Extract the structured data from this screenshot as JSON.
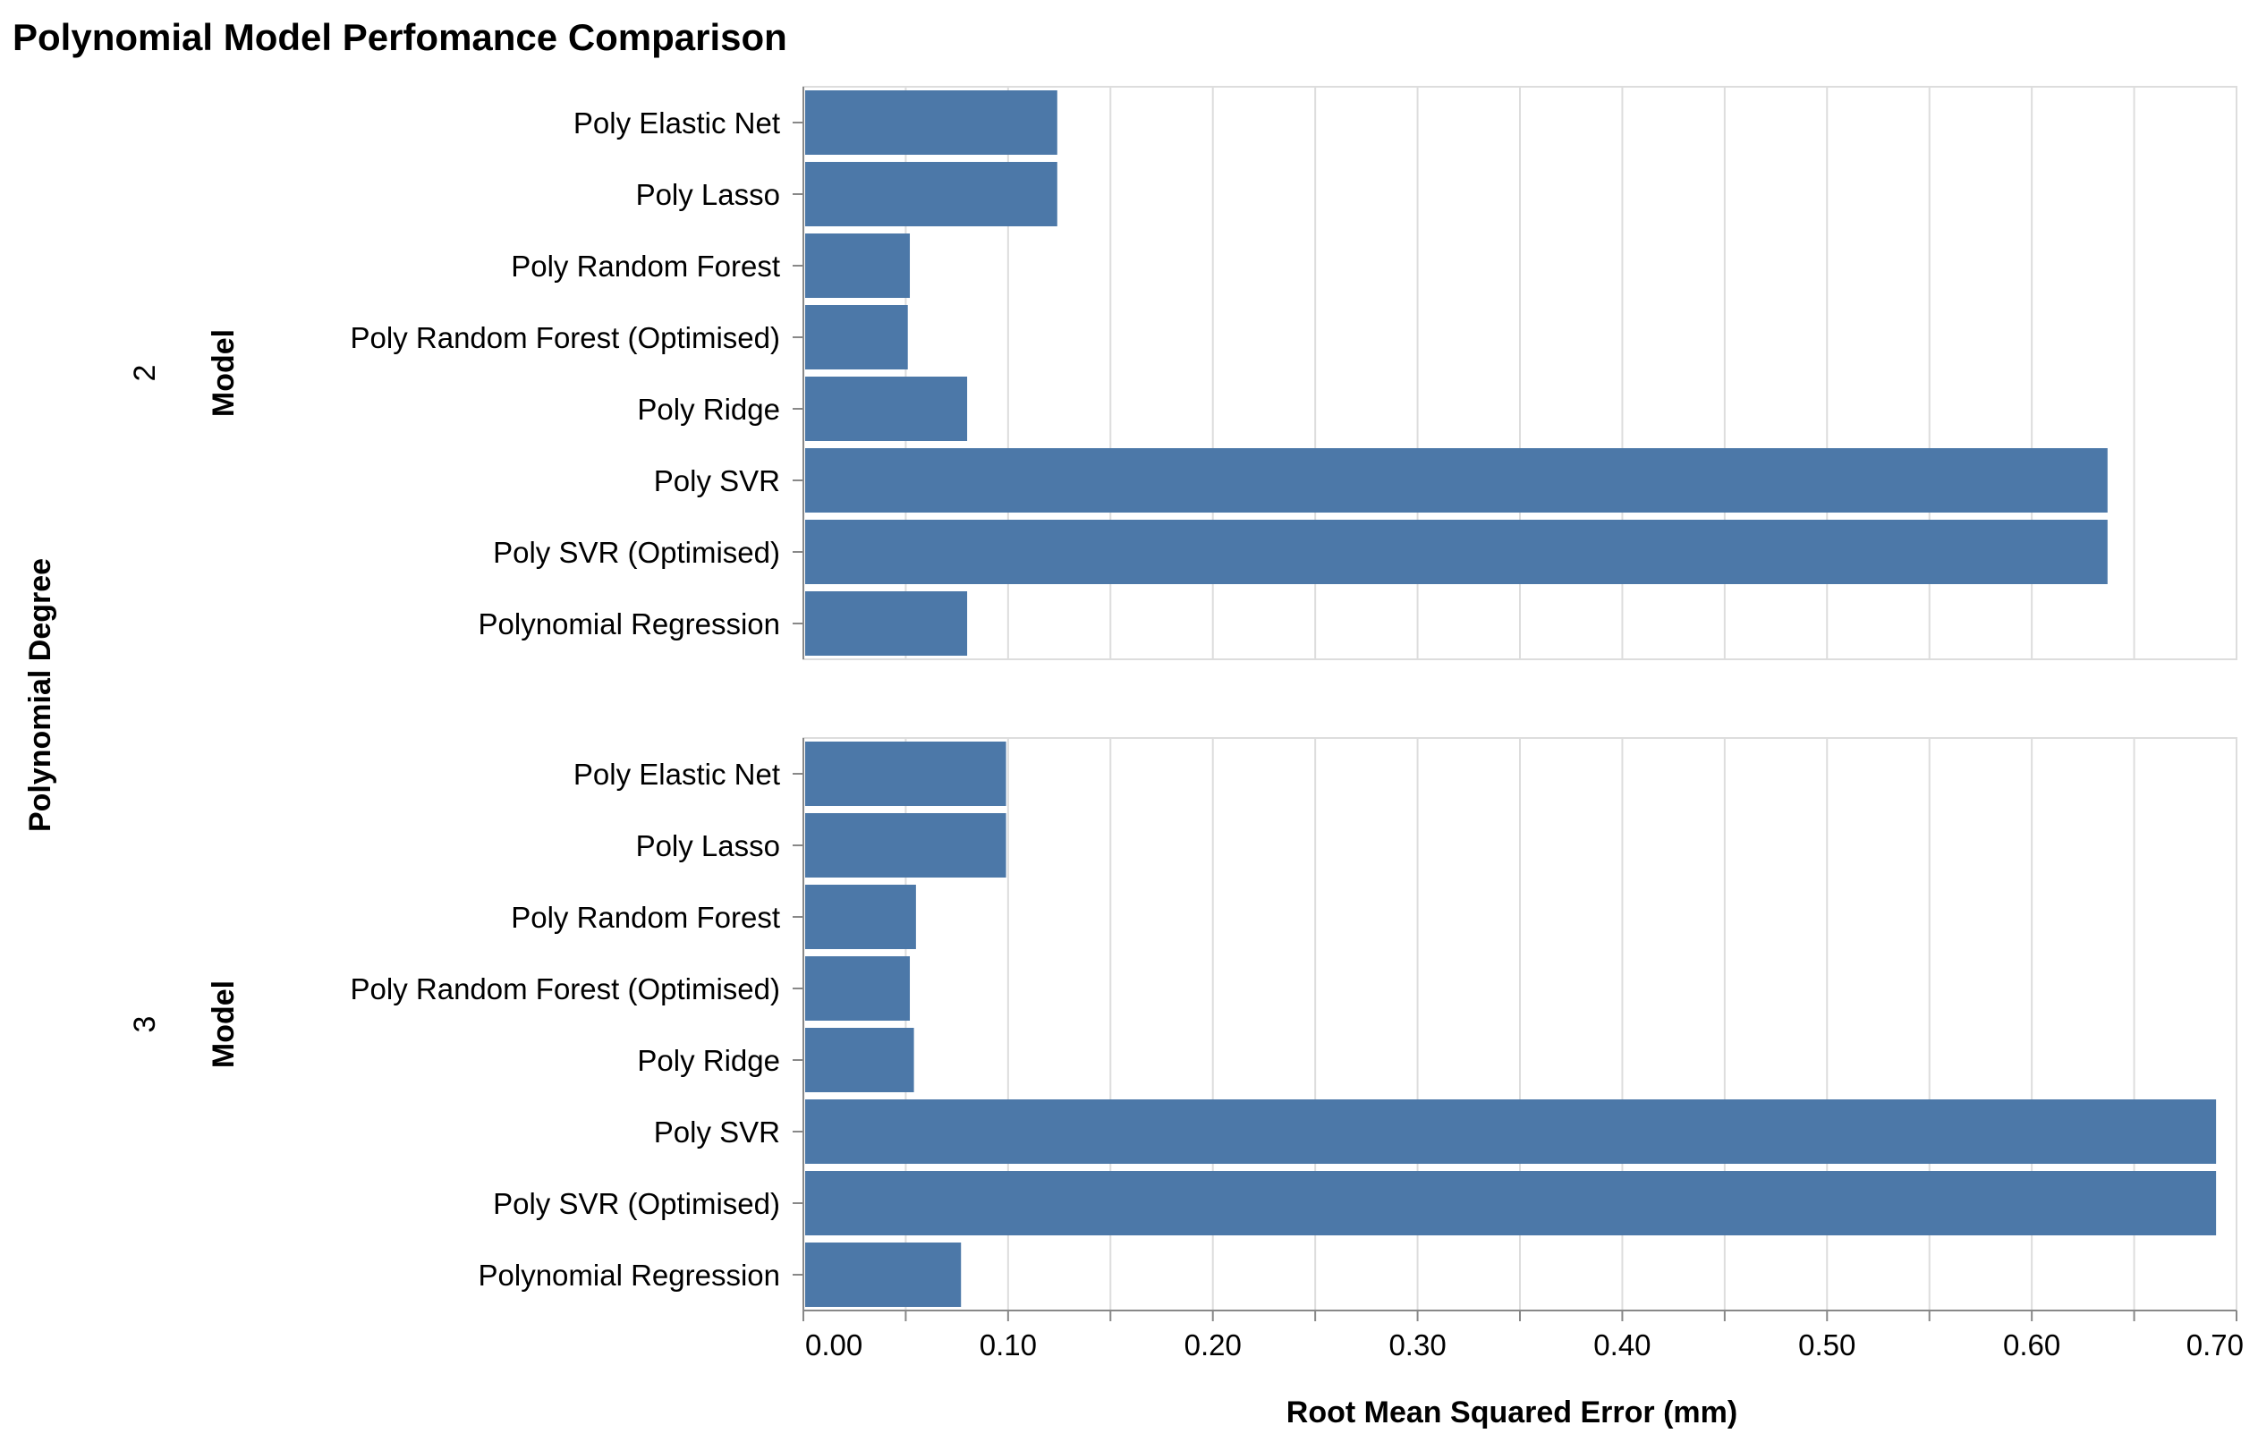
{
  "chart_data": {
    "type": "bar",
    "orientation": "horizontal",
    "title": "Polynomial Model Perfomance Comparison",
    "xlabel": "Root Mean Squared Error (mm)",
    "row_facet_label": "Polynomial Degree",
    "ylabel": "Model",
    "xlim": [
      0,
      0.7
    ],
    "x_ticks": [
      "0.00",
      "0.10",
      "0.20",
      "0.30",
      "0.40",
      "0.50",
      "0.60",
      "0.70"
    ],
    "grid": true,
    "bar_color": "#4c78a8",
    "categories": [
      "Poly Elastic Net",
      "Poly Lasso",
      "Poly Random Forest",
      "Poly Random Forest (Optimised)",
      "Poly Ridge",
      "Poly SVR",
      "Poly SVR (Optimised)",
      "Polynomial Regression"
    ],
    "facets": [
      {
        "label": "2",
        "values": [
          0.124,
          0.124,
          0.052,
          0.051,
          0.08,
          0.637,
          0.637,
          0.08
        ]
      },
      {
        "label": "3",
        "values": [
          0.099,
          0.099,
          0.055,
          0.052,
          0.054,
          0.69,
          0.69,
          0.077
        ]
      }
    ]
  }
}
